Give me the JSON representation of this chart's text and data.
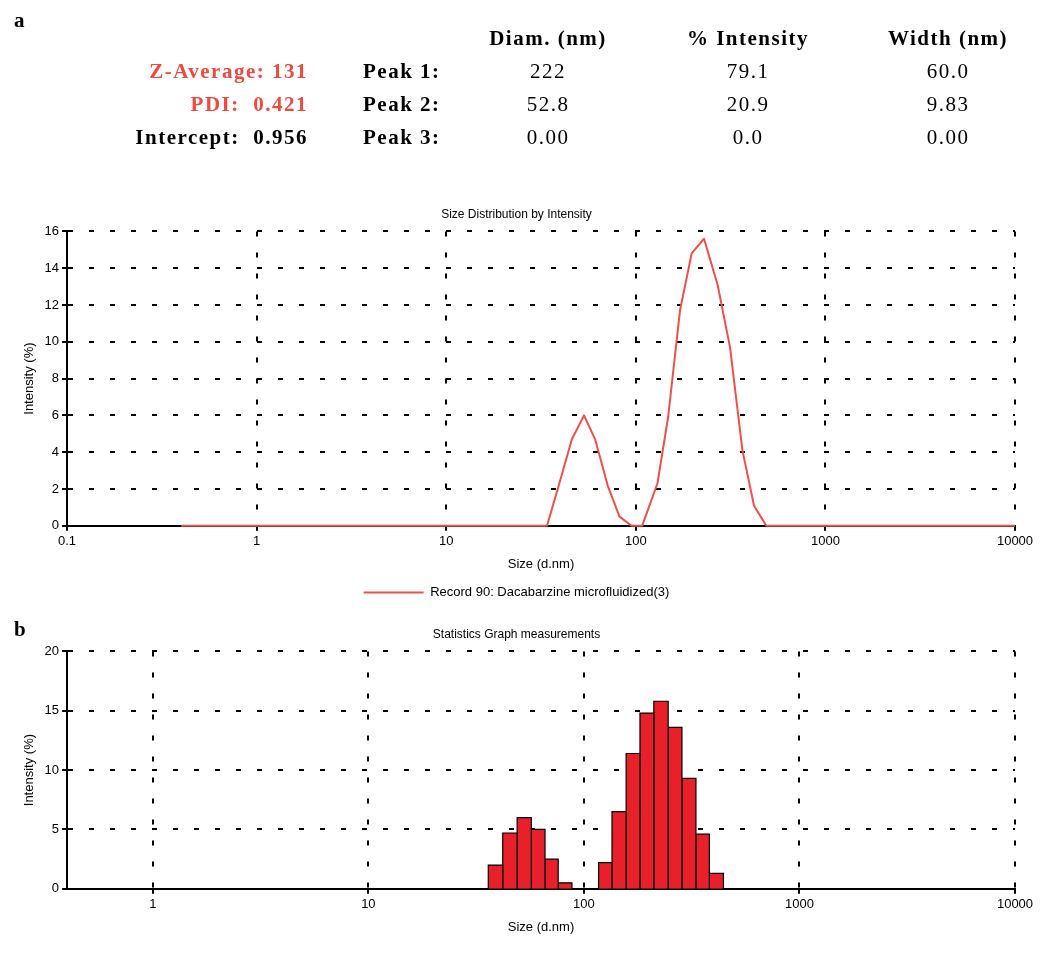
{
  "chart_data": [
    {
      "type": "other",
      "annotations": [
        "a",
        "Diam. (nm)",
        "% Intensity",
        "Width (nm)",
        "Z-Average: 131",
        "Peak 1:",
        "222",
        "79.1",
        "60.0",
        "PDI:  0.421",
        "Peak 2:",
        "52.8",
        "20.9",
        "9.83",
        "Intercept:  0.956",
        "Peak 3:",
        "0.00",
        "0.0",
        "0.00"
      ]
    },
    {
      "type": "line",
      "title": "Size Distribution by Intensity",
      "xlabel": "Size (d.nm)",
      "ylabel": "Intensity (%)",
      "log": "x",
      "xlim": [
        0.1,
        10000
      ],
      "xticks": [
        0.1,
        1,
        10,
        100,
        1000,
        10000
      ],
      "ylim": [
        0,
        16
      ],
      "yticks": [
        0,
        2,
        4,
        6,
        8,
        10,
        12,
        14,
        16
      ],
      "grid": true,
      "legend": "bottom",
      "marker": "none",
      "series": [
        {
          "name": "Record 90: Dacabarzine microfluidized(3)",
          "color": "#f0504a",
          "x": [
            0.4,
            34,
            38.5,
            46,
            53.3,
            61,
            71,
            82,
            95,
            108,
            130,
            148,
            171,
            197,
            229,
            270,
            314,
            365,
            420,
            488,
            10000
          ],
          "values": [
            0,
            0,
            1.9,
            4.7,
            6.0,
            4.7,
            2.2,
            0.5,
            0,
            0,
            2.3,
            5.9,
            11.7,
            14.8,
            15.6,
            13.1,
            9.7,
            4.1,
            1.1,
            0,
            0
          ]
        }
      ]
    },
    {
      "type": "histogram",
      "title": "Statistics Graph measurements",
      "xlabel": "Size (d.nm)",
      "ylabel": "Intensity (%)",
      "log": "x",
      "xlim": [
        0.4,
        10000
      ],
      "xticks": [
        1,
        10,
        100,
        1000,
        10000
      ],
      "ylim": [
        0,
        20
      ],
      "yticks": [
        0,
        5,
        10,
        15,
        20
      ],
      "grid": true,
      "color": "#e8202a",
      "annotations": [
        "b"
      ],
      "bins": [
        36,
        42,
        49,
        57,
        66,
        76,
        88,
        117,
        135,
        157,
        182,
        211,
        246,
        285,
        331,
        382,
        444
      ],
      "values": [
        2.0,
        4.7,
        6.0,
        5.0,
        2.5,
        0.5,
        0,
        2.2,
        6.5,
        11.4,
        14.8,
        15.8,
        13.6,
        9.3,
        4.6,
        1.3
      ]
    }
  ]
}
